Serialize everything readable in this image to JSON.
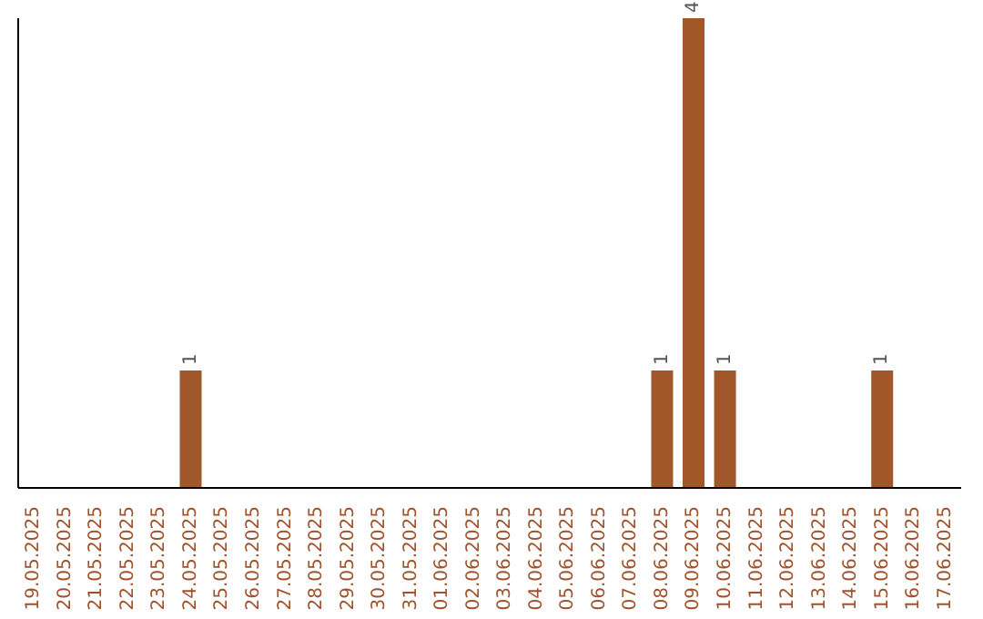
{
  "chart_data": {
    "type": "bar",
    "categories": [
      "19.05.2025",
      "20.05.2025",
      "21.05.2025",
      "22.05.2025",
      "23.05.2025",
      "24.05.2025",
      "25.05.2025",
      "26.05.2025",
      "27.05.2025",
      "28.05.2025",
      "29.05.2025",
      "30.05.2025",
      "31.05.2025",
      "01.06.2025",
      "02.06.2025",
      "03.06.2025",
      "04.06.2025",
      "05.06.2025",
      "06.06.2025",
      "07.06.2025",
      "08.06.2025",
      "09.06.2025",
      "10.06.2025",
      "11.06.2025",
      "12.06.2025",
      "13.06.2025",
      "14.06.2025",
      "15.06.2025",
      "16.06.2025",
      "17.06.2025"
    ],
    "values": [
      0,
      0,
      0,
      0,
      0,
      1,
      0,
      0,
      0,
      0,
      0,
      0,
      0,
      0,
      0,
      0,
      0,
      0,
      0,
      0,
      1,
      4,
      1,
      0,
      0,
      0,
      0,
      1,
      0,
      0
    ],
    "value_labels": [
      null,
      null,
      null,
      null,
      null,
      "1",
      null,
      null,
      null,
      null,
      null,
      null,
      null,
      null,
      null,
      null,
      null,
      null,
      null,
      null,
      "1",
      "4",
      "1",
      null,
      null,
      null,
      null,
      "1",
      null,
      null
    ],
    "color": "#a0572a",
    "grid": false,
    "legend": false
  }
}
